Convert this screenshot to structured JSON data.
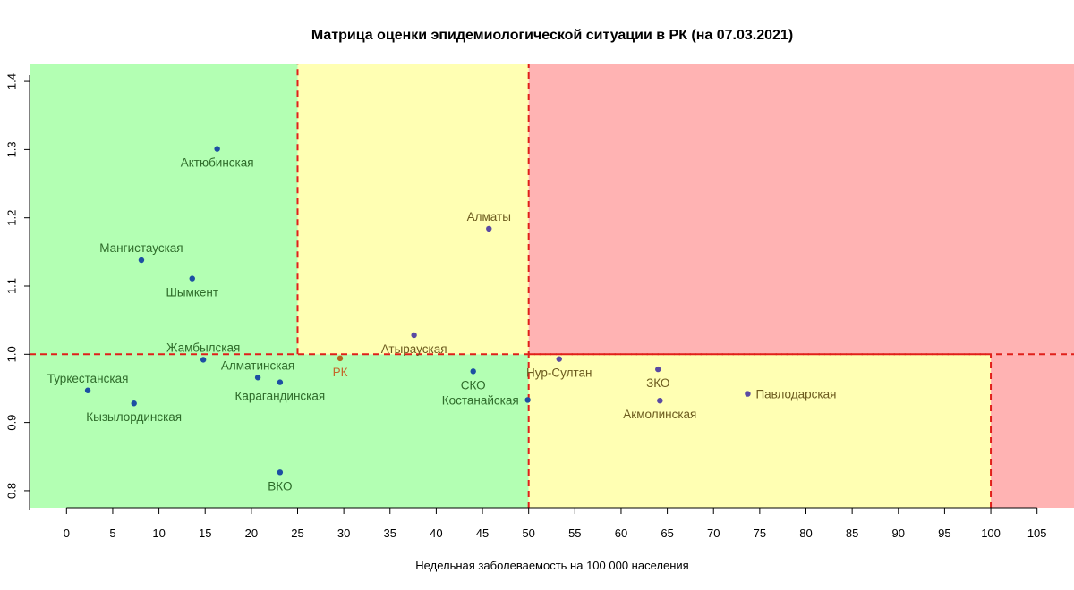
{
  "chart_data": {
    "type": "scatter",
    "title": "Матрица оценки эпидемиологической ситуации в РК (на 07.03.2021)",
    "xlabel": "Недельная заболеваемость на 100 000 населения",
    "ylabel": "",
    "xlim": [
      -4,
      109
    ],
    "ylim": [
      0.775,
      1.425
    ],
    "x_ticks": [
      0,
      5,
      10,
      15,
      20,
      25,
      30,
      35,
      40,
      45,
      50,
      55,
      60,
      65,
      70,
      75,
      80,
      85,
      90,
      95,
      100,
      105
    ],
    "x_tick_labels": [
      "0",
      "5",
      "10",
      "15",
      "20",
      "25",
      "30",
      "35",
      "40",
      "45",
      "50",
      "55",
      "60",
      "65",
      "70",
      "75",
      "80",
      "85",
      "90",
      "95",
      "100",
      "105"
    ],
    "y_ticks": [
      0.8,
      0.9,
      1.0,
      1.1,
      1.2,
      1.3,
      1.4
    ],
    "y_tick_labels": [
      "0.8",
      "0.9",
      "1.0",
      "1.1",
      "1.2",
      "1.3",
      "1.4"
    ],
    "grid": false,
    "zones": [
      {
        "x": [
          -4,
          25
        ],
        "y": [
          0.775,
          1.425
        ],
        "color": "#b3ffb3"
      },
      {
        "x": [
          -4,
          50
        ],
        "y": [
          0.775,
          1.0
        ],
        "color": "#b3ffb3"
      },
      {
        "x": [
          25,
          50
        ],
        "y": [
          1.0,
          1.425
        ],
        "color": "#ffffb3"
      },
      {
        "x": [
          50,
          100
        ],
        "y": [
          0.775,
          1.0
        ],
        "color": "#ffffb3"
      },
      {
        "x": [
          50,
          109
        ],
        "y": [
          1.0,
          1.425
        ],
        "color": "#ffb3b3"
      },
      {
        "x": [
          100,
          109
        ],
        "y": [
          0.775,
          1.0
        ],
        "color": "#ffb3b3"
      }
    ],
    "threshold_lines": [
      {
        "x": [
          25,
          25
        ],
        "y": [
          1.0,
          1.425
        ]
      },
      {
        "x": [
          50,
          50
        ],
        "y": [
          0.775,
          1.425
        ]
      },
      {
        "x": [
          -4,
          109
        ],
        "y": [
          1.0,
          1.0
        ]
      },
      {
        "x": [
          100,
          100
        ],
        "y": [
          0.775,
          1.0
        ]
      },
      {
        "x": [
          50,
          100
        ],
        "y": [
          1.0,
          1.0
        ]
      }
    ],
    "threshold_color": "#e0201a",
    "points": [
      {
        "label": "Актюбинская",
        "x": 16.3,
        "y": 1.301,
        "color": "#1c4fa3",
        "label_color": "#2e6b2a",
        "label_pos": "below"
      },
      {
        "label": "Мангистауская",
        "x": 8.1,
        "y": 1.138,
        "color": "#1c4fa3",
        "label_color": "#2e6b2a",
        "label_pos": "above"
      },
      {
        "label": "Шымкент",
        "x": 13.6,
        "y": 1.111,
        "color": "#1c4fa3",
        "label_color": "#2e6b2a",
        "label_pos": "below"
      },
      {
        "label": "Жамбылская",
        "x": 14.8,
        "y": 0.992,
        "color": "#1c4fa3",
        "label_color": "#2e6b2a",
        "label_pos": "above"
      },
      {
        "label": "Алматинская",
        "x": 20.7,
        "y": 0.966,
        "color": "#1c4fa3",
        "label_color": "#2e6b2a",
        "label_pos": "above"
      },
      {
        "label": "Карагандинская",
        "x": 23.1,
        "y": 0.959,
        "color": "#1c4fa3",
        "label_color": "#2e6b2a",
        "label_pos": "below"
      },
      {
        "label": "Туркестанская",
        "x": 2.3,
        "y": 0.947,
        "color": "#1c4fa3",
        "label_color": "#2e6b2a",
        "label_pos": "above"
      },
      {
        "label": "Кызылординская",
        "x": 7.3,
        "y": 0.928,
        "color": "#1c4fa3",
        "label_color": "#2e6b2a",
        "label_pos": "below"
      },
      {
        "label": "ВКО",
        "x": 23.1,
        "y": 0.827,
        "color": "#1c4fa3",
        "label_color": "#2e6b2a",
        "label_pos": "below"
      },
      {
        "label": "РК",
        "x": 29.6,
        "y": 0.994,
        "color": "#b5651d",
        "label_color": "#c4652a",
        "label_pos": "below"
      },
      {
        "label": "Алматы",
        "x": 45.7,
        "y": 1.184,
        "color": "#5a4aa3",
        "label_color": "#6b5a1e",
        "label_pos": "above"
      },
      {
        "label": "Атырауская",
        "x": 37.6,
        "y": 1.028,
        "color": "#5a4aa3",
        "label_color": "#6b5a1e",
        "label_pos": "below"
      },
      {
        "label": "СКО",
        "x": 44.0,
        "y": 0.975,
        "color": "#1c4fa3",
        "label_color": "#2e6b2a",
        "label_pos": "below"
      },
      {
        "label": "Костанайская",
        "x": 49.9,
        "y": 0.933,
        "color": "#1c4fa3",
        "label_color": "#2e6b2a",
        "label_pos": "left"
      },
      {
        "label": "Нур-Султан",
        "x": 53.3,
        "y": 0.993,
        "color": "#5a4aa3",
        "label_color": "#6b5a1e",
        "label_pos": "below"
      },
      {
        "label": "ЗКО",
        "x": 64.0,
        "y": 0.978,
        "color": "#5a4aa3",
        "label_color": "#6b5a1e",
        "label_pos": "below"
      },
      {
        "label": "Акмолинская",
        "x": 64.2,
        "y": 0.932,
        "color": "#5a4aa3",
        "label_color": "#6b5a1e",
        "label_pos": "below"
      },
      {
        "label": "Павлодарская",
        "x": 73.7,
        "y": 0.942,
        "color": "#5a4aa3",
        "label_color": "#6b5a1e",
        "label_pos": "right"
      }
    ]
  }
}
